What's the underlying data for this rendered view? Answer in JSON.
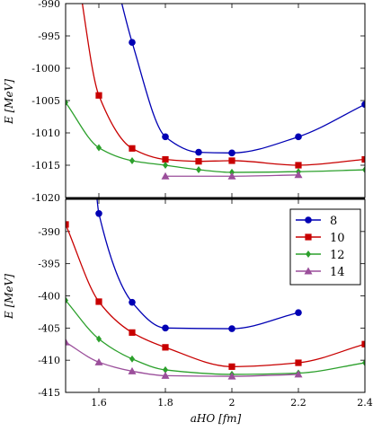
{
  "chart_data": [
    {
      "type": "line",
      "panel": "top",
      "ylabel": "E [MeV]",
      "xlim": [
        1.5,
        2.4
      ],
      "ylim": [
        -1020,
        -990
      ],
      "xticks": [
        1.6,
        1.8,
        2,
        2.2,
        2.4
      ],
      "xtick_labels": [
        "1.6",
        "1.8",
        "2",
        "2.2",
        "2.4"
      ],
      "yticks": [
        -990,
        -995,
        -1000,
        -1005,
        -1010,
        -1015,
        -1020
      ],
      "ytick_labels": [
        "-990",
        "-995",
        "-1000",
        "-1005",
        "-1010",
        "-1015",
        "-1020"
      ],
      "series": [
        {
          "name": "8",
          "color": "#0000b4",
          "marker": "circle",
          "x": [
            1.7,
            1.8,
            1.9,
            2.0,
            2.2,
            2.4
          ],
          "y": [
            -996.0,
            -1010.6,
            -1013.0,
            -1013.1,
            -1010.6,
            -1005.6
          ],
          "curve_extension": [
            [
              1.645,
              -985
            ],
            [
              1.7,
              -996.0
            ]
          ]
        },
        {
          "name": "10",
          "color": "#c80000",
          "marker": "square",
          "x": [
            1.6,
            1.7,
            1.8,
            1.9,
            2.0,
            2.2,
            2.4
          ],
          "y": [
            -1004.2,
            -1012.4,
            -1014.1,
            -1014.4,
            -1014.3,
            -1015.0,
            -1014.1
          ],
          "curve_extension": [
            [
              1.535,
              -985
            ],
            [
              1.6,
              -1004.2
            ]
          ]
        },
        {
          "name": "12",
          "color": "#2ca02c",
          "marker": "diamond",
          "x": [
            1.5,
            1.6,
            1.7,
            1.8,
            1.9,
            2.0,
            2.2,
            2.4
          ],
          "y": [
            -1005.3,
            -1012.3,
            -1014.3,
            -1015.0,
            -1015.7,
            -1016.1,
            -1016.0,
            -1015.7
          ]
        },
        {
          "name": "14",
          "color": "#9b4f9b",
          "marker": "triangle",
          "x": [
            1.8,
            2.0,
            2.2
          ],
          "y": [
            -1016.7,
            -1016.7,
            -1016.5
          ]
        }
      ]
    },
    {
      "type": "line",
      "panel": "bottom",
      "ylabel": "E [MeV]",
      "xlabel": "aHO [fm]",
      "xlim": [
        1.5,
        2.4
      ],
      "ylim": [
        -415,
        -385
      ],
      "xticks": [
        1.6,
        1.8,
        2,
        2.2,
        2.4
      ],
      "xtick_labels": [
        "1.6",
        "1.8",
        "2",
        "2.2",
        "2.4"
      ],
      "yticks": [
        -390,
        -395,
        -400,
        -405,
        -410,
        -415
      ],
      "ytick_labels": [
        "-390",
        "-395",
        "-400",
        "-405",
        "-410",
        "-415"
      ],
      "legend": {
        "placement": "top-right",
        "entries": [
          "8",
          "10",
          "12",
          "14"
        ]
      },
      "series": [
        {
          "name": "8",
          "color": "#0000b4",
          "marker": "circle",
          "x": [
            1.6,
            1.7,
            1.8,
            2.0,
            2.2
          ],
          "y": [
            -387.2,
            -401.0,
            -405.0,
            -405.1,
            -402.6
          ],
          "curve_extension": [
            [
              1.586,
              -380
            ],
            [
              1.6,
              -387.2
            ]
          ]
        },
        {
          "name": "10",
          "color": "#c80000",
          "marker": "square",
          "x": [
            1.5,
            1.6,
            1.7,
            1.8,
            2.0,
            2.2,
            2.4
          ],
          "y": [
            -388.9,
            -400.9,
            -405.7,
            -408.0,
            -411.0,
            -410.4,
            -407.5
          ]
        },
        {
          "name": "12",
          "color": "#2ca02c",
          "marker": "diamond",
          "x": [
            1.5,
            1.6,
            1.7,
            1.8,
            2.0,
            2.2,
            2.4
          ],
          "y": [
            -400.7,
            -406.7,
            -409.8,
            -411.5,
            -412.2,
            -412.0,
            -410.4
          ]
        },
        {
          "name": "14",
          "color": "#9b4f9b",
          "marker": "triangle",
          "x": [
            1.5,
            1.6,
            1.7,
            1.8,
            2.0,
            2.2
          ],
          "y": [
            -407.2,
            -410.3,
            -411.7,
            -412.4,
            -412.5,
            -412.2
          ]
        }
      ]
    }
  ]
}
